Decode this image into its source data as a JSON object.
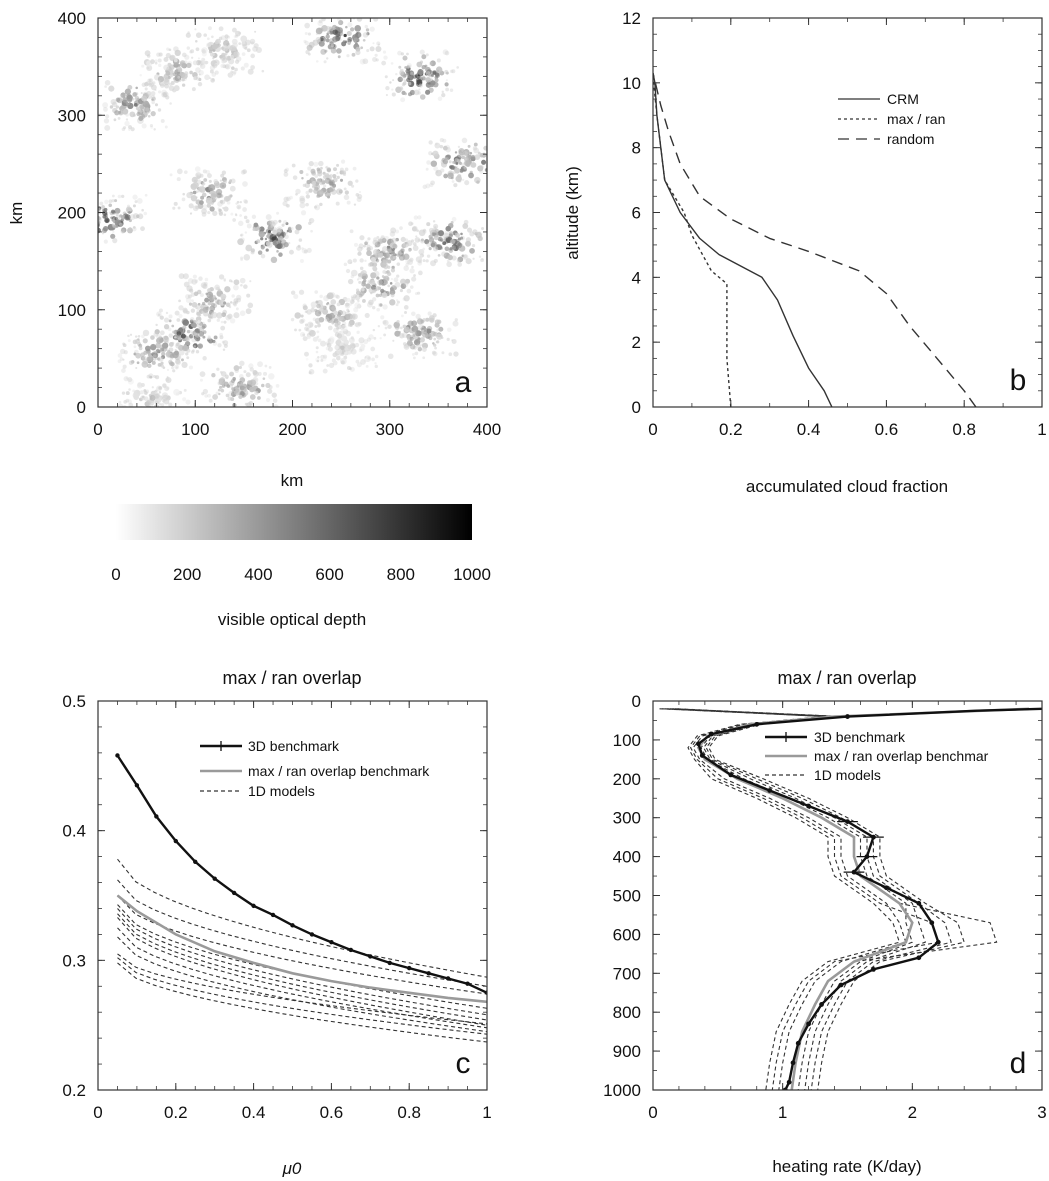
{
  "chart_data": [
    {
      "panel": "a",
      "type": "heatmap",
      "xlabel": "km",
      "ylabel": "km",
      "xticks": [
        0,
        100,
        200,
        300,
        400
      ],
      "yticks": [
        0,
        100,
        200,
        300,
        400
      ],
      "xlim": [
        0,
        400
      ],
      "ylim": [
        0,
        400
      ],
      "colorbar": {
        "label": "visible optical depth",
        "ticks": [
          0,
          200,
          400,
          600,
          800,
          1000
        ],
        "range": [
          0,
          1000
        ]
      },
      "clusters": [
        {
          "x": 35,
          "y": 310,
          "v": 500
        },
        {
          "x": 80,
          "y": 345,
          "v": 350
        },
        {
          "x": 130,
          "y": 365,
          "v": 300
        },
        {
          "x": 250,
          "y": 380,
          "v": 700
        },
        {
          "x": 330,
          "y": 340,
          "v": 750
        },
        {
          "x": 375,
          "y": 250,
          "v": 600
        },
        {
          "x": 360,
          "y": 170,
          "v": 650
        },
        {
          "x": 300,
          "y": 160,
          "v": 500
        },
        {
          "x": 180,
          "y": 175,
          "v": 700
        },
        {
          "x": 230,
          "y": 230,
          "v": 450
        },
        {
          "x": 115,
          "y": 220,
          "v": 450
        },
        {
          "x": 10,
          "y": 195,
          "v": 750
        },
        {
          "x": 95,
          "y": 75,
          "v": 750
        },
        {
          "x": 120,
          "y": 110,
          "v": 450
        },
        {
          "x": 60,
          "y": 55,
          "v": 500
        },
        {
          "x": 145,
          "y": 20,
          "v": 500
        },
        {
          "x": 290,
          "y": 125,
          "v": 500
        },
        {
          "x": 330,
          "y": 75,
          "v": 500
        },
        {
          "x": 240,
          "y": 95,
          "v": 350
        },
        {
          "x": 250,
          "y": 60,
          "v": 200
        },
        {
          "x": 55,
          "y": 8,
          "v": 250
        }
      ]
    },
    {
      "panel": "b",
      "type": "line",
      "xlabel": "accumulated cloud fraction",
      "ylabel": "altitude (km)",
      "xlim": [
        0,
        1
      ],
      "ylim": [
        0,
        12
      ],
      "xticks": [
        0,
        0.2,
        0.4,
        0.6,
        0.8,
        1
      ],
      "xtick_labels": [
        "0",
        "0.2",
        "0.4",
        "0.6",
        "0.8",
        "1"
      ],
      "yticks": [
        0,
        2,
        4,
        6,
        8,
        10,
        12
      ],
      "series": [
        {
          "name": "CRM",
          "style": "solid",
          "color": "#333333",
          "points": [
            [
              0.46,
              0
            ],
            [
              0.44,
              0.5
            ],
            [
              0.4,
              1.2
            ],
            [
              0.36,
              2.2
            ],
            [
              0.32,
              3.3
            ],
            [
              0.28,
              4.0
            ],
            [
              0.17,
              4.7
            ],
            [
              0.12,
              5.2
            ],
            [
              0.07,
              6.0
            ],
            [
              0.03,
              7.0
            ],
            [
              0.02,
              8.0
            ],
            [
              0.01,
              9.0
            ],
            [
              0.005,
              10.0
            ],
            [
              0,
              10.3
            ]
          ]
        },
        {
          "name": "max / ran",
          "style": "dotted",
          "color": "#333333",
          "points": [
            [
              0.2,
              0
            ],
            [
              0.19,
              1.5
            ],
            [
              0.19,
              3
            ],
            [
              0.19,
              3.8
            ],
            [
              0.15,
              4.2
            ],
            [
              0.1,
              5.3
            ],
            [
              0.08,
              6.0
            ],
            [
              0.03,
              7.0
            ],
            [
              0.02,
              8.0
            ],
            [
              0.01,
              9.0
            ],
            [
              0,
              10.2
            ]
          ]
        },
        {
          "name": "random",
          "style": "dashed",
          "color": "#333333",
          "points": [
            [
              0.83,
              0
            ],
            [
              0.8,
              0.5
            ],
            [
              0.73,
              1.5
            ],
            [
              0.66,
              2.5
            ],
            [
              0.6,
              3.5
            ],
            [
              0.53,
              4.2
            ],
            [
              0.4,
              4.8
            ],
            [
              0.3,
              5.2
            ],
            [
              0.2,
              5.8
            ],
            [
              0.12,
              6.5
            ],
            [
              0.07,
              7.5
            ],
            [
              0.04,
              8.5
            ],
            [
              0.02,
              9.3
            ],
            [
              0,
              10.3
            ]
          ]
        }
      ],
      "legend": "top-right"
    },
    {
      "panel": "c",
      "type": "line",
      "title": "max / ran overlap",
      "xlabel": "μ0",
      "ylabel": "",
      "xlim": [
        0,
        1
      ],
      "ylim": [
        0.2,
        0.5
      ],
      "xticks": [
        0,
        0.2,
        0.4,
        0.6,
        0.8,
        1
      ],
      "xtick_labels": [
        "0",
        "0.2",
        "0.4",
        "0.6",
        "0.8",
        "1"
      ],
      "yticks": [
        0.2,
        0.3,
        0.4,
        0.5
      ],
      "ytick_labels": [
        "0.2",
        "0.3",
        "0.4",
        "0.5"
      ],
      "series": [
        {
          "name": "3D benchmark",
          "style": "solid-markers",
          "color": "#111111",
          "x": [
            0.05,
            0.1,
            0.15,
            0.2,
            0.25,
            0.3,
            0.35,
            0.4,
            0.45,
            0.5,
            0.55,
            0.6,
            0.65,
            0.7,
            0.75,
            0.8,
            0.85,
            0.9,
            0.95,
            1.0
          ],
          "y": [
            0.458,
            0.435,
            0.411,
            0.392,
            0.376,
            0.363,
            0.352,
            0.342,
            0.335,
            0.327,
            0.32,
            0.314,
            0.308,
            0.303,
            0.298,
            0.294,
            0.29,
            0.286,
            0.282,
            0.275
          ]
        },
        {
          "name": "max / ran overlap benchmark",
          "style": "solid",
          "color": "#9a9a9a",
          "x": [
            0.05,
            0.1,
            0.2,
            0.3,
            0.4,
            0.5,
            0.6,
            0.7,
            0.8,
            0.9,
            1.0
          ],
          "y": [
            0.35,
            0.338,
            0.32,
            0.307,
            0.298,
            0.29,
            0.284,
            0.279,
            0.275,
            0.271,
            0.268
          ]
        },
        {
          "name": "1D models",
          "style": "dashed",
          "color": "#333333",
          "lines": [
            {
              "y0": 0.378,
              "y1": 0.287
            },
            {
              "y0": 0.362,
              "y1": 0.28
            },
            {
              "y0": 0.35,
              "y1": 0.274
            },
            {
              "y0": 0.343,
              "y1": 0.263
            },
            {
              "y0": 0.34,
              "y1": 0.258
            },
            {
              "y0": 0.336,
              "y1": 0.254
            },
            {
              "y0": 0.333,
              "y1": 0.25
            },
            {
              "y0": 0.325,
              "y1": 0.248
            },
            {
              "y0": 0.318,
              "y1": 0.245
            },
            {
              "y0": 0.305,
              "y1": 0.251
            },
            {
              "y0": 0.302,
              "y1": 0.243
            },
            {
              "y0": 0.298,
              "y1": 0.237
            }
          ]
        }
      ],
      "legend": "top-right"
    },
    {
      "panel": "d",
      "type": "line",
      "title": "max / ran overlap",
      "xlabel": "heating rate (K/day)",
      "ylabel": "",
      "xlim": [
        0,
        3
      ],
      "ylim": [
        1000,
        0
      ],
      "xticks": [
        0,
        1,
        2,
        3
      ],
      "yticks": [
        0,
        100,
        200,
        300,
        400,
        500,
        600,
        700,
        800,
        900,
        1000
      ],
      "series": [
        {
          "name": "3D benchmark",
          "style": "solid-markers",
          "color": "#111111",
          "points": [
            [
              3.0,
              20
            ],
            [
              2.5,
              25
            ],
            [
              1.5,
              40
            ],
            [
              0.8,
              60
            ],
            [
              0.45,
              85
            ],
            [
              0.35,
              110
            ],
            [
              0.38,
              140
            ],
            [
              0.6,
              190
            ],
            [
              0.9,
              230
            ],
            [
              1.2,
              270
            ],
            [
              1.5,
              310
            ],
            [
              1.7,
              350
            ],
            [
              1.65,
              400
            ],
            [
              1.55,
              440
            ],
            [
              1.8,
              480
            ],
            [
              2.05,
              520
            ],
            [
              2.15,
              570
            ],
            [
              2.2,
              620
            ],
            [
              2.05,
              660
            ],
            [
              1.7,
              690
            ],
            [
              1.45,
              730
            ],
            [
              1.3,
              780
            ],
            [
              1.2,
              830
            ],
            [
              1.12,
              880
            ],
            [
              1.08,
              930
            ],
            [
              1.05,
              980
            ],
            [
              1.02,
              1000
            ]
          ]
        },
        {
          "name": "max / ran overlap benchmark",
          "style": "solid",
          "color": "#9a9a9a",
          "points": [
            [
              2.9,
              20
            ],
            [
              1.4,
              40
            ],
            [
              0.75,
              60
            ],
            [
              0.42,
              90
            ],
            [
              0.35,
              120
            ],
            [
              0.4,
              150
            ],
            [
              0.65,
              200
            ],
            [
              1.0,
              250
            ],
            [
              1.3,
              300
            ],
            [
              1.55,
              350
            ],
            [
              1.55,
              400
            ],
            [
              1.6,
              450
            ],
            [
              1.9,
              520
            ],
            [
              2.0,
              570
            ],
            [
              1.95,
              620
            ],
            [
              1.55,
              670
            ],
            [
              1.35,
              720
            ],
            [
              1.25,
              780
            ],
            [
              1.15,
              850
            ],
            [
              1.1,
              930
            ],
            [
              1.07,
              1000
            ]
          ]
        },
        {
          "name": "1D models",
          "style": "dashed",
          "color": "#333333",
          "lines": [
            {
              "dx": 0.0,
              "peak": 2.75
            },
            {
              "dx": -0.15,
              "peak": 2.3
            },
            {
              "dx": 0.15,
              "peak": 2.4
            },
            {
              "dx": -0.1,
              "peak": 2.05
            },
            {
              "dx": 0.1,
              "peak": 2.2
            },
            {
              "dx": -0.2,
              "peak": 2.0
            },
            {
              "dx": 0.2,
              "peak": 2.5
            },
            {
              "dx": 0.05,
              "peak": 2.1
            }
          ]
        }
      ],
      "legend": "top-right"
    }
  ],
  "panel_letters": {
    "a": "a",
    "b": "b",
    "c": "c",
    "d": "d"
  },
  "legend_labels": {
    "b": [
      "CRM",
      "max / ran",
      "random"
    ],
    "c": [
      "3D benchmark",
      "max / ran overlap benchmark",
      "1D models"
    ],
    "d": [
      "3D benchmark",
      "max / ran overlap benchmar",
      "1D models"
    ]
  }
}
